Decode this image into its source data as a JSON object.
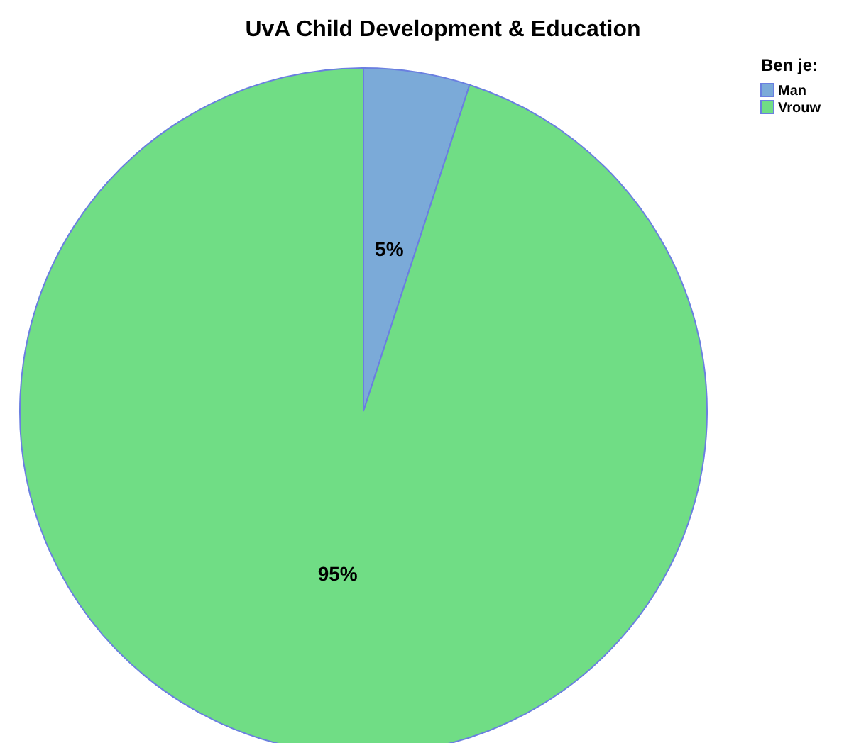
{
  "chart_data": {
    "type": "pie",
    "title": "UvA Child Development & Education",
    "legend_title": "Ben je:",
    "legend": "top right",
    "categories": [
      "Man",
      "Vrouw"
    ],
    "values": [
      5,
      95
    ],
    "colors": [
      "#7baad8",
      "#70dd85"
    ],
    "value_labels": [
      "5%",
      "95%"
    ]
  }
}
